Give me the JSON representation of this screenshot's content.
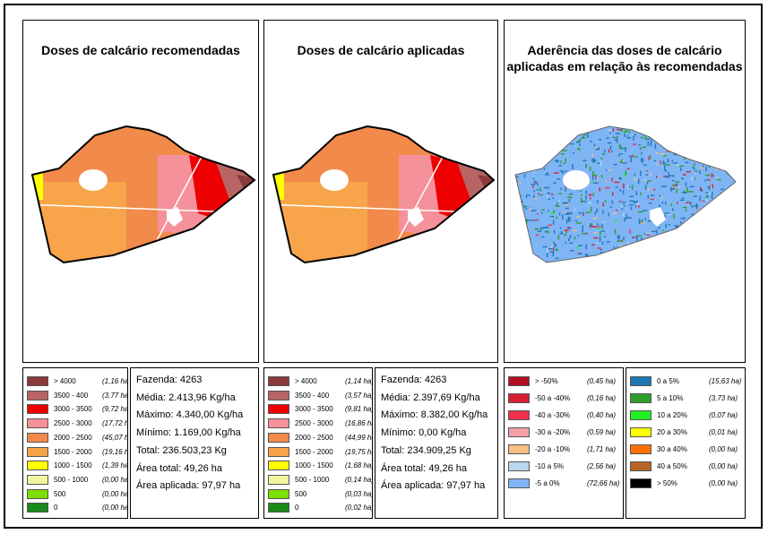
{
  "maps": [
    {
      "title": "Doses de calcário recomendadas"
    },
    {
      "title": "Doses de calcário aplicadas"
    },
    {
      "title": "Aderência das doses de calcário\naplicadas  em relação às recomendadas"
    }
  ],
  "legends": [
    {
      "items": [
        {
          "label": "> 4000",
          "area": "(1,16 ha)",
          "color": "#8B3A3A"
        },
        {
          "label": "3500 - 400",
          "area": "(3,77 ha)",
          "color": "#B86464"
        },
        {
          "label": "3000 - 3500",
          "area": "(9,72 ha)",
          "color": "#EE0000"
        },
        {
          "label": "2500 - 3000",
          "area": "(17,72 ha)",
          "color": "#F5919A"
        },
        {
          "label": "2000 - 2500",
          "area": "(45,07 ha)",
          "color": "#F28A4B"
        },
        {
          "label": "1500 - 2000",
          "area": "(19,16 ha)",
          "color": "#F7A44A"
        },
        {
          "label": "1000 - 1500",
          "area": "(1,39 ha)",
          "color": "#FFFF00"
        },
        {
          "label": "500 - 1000",
          "area": "(0,00 ha)",
          "color": "#F5F5A0"
        },
        {
          "label": "500",
          "area": "(0,00 ha)",
          "color": "#7FE000"
        },
        {
          "label": "0",
          "area": "(0,00 ha)",
          "color": "#1A8A1A"
        }
      ]
    },
    {
      "items": [
        {
          "label": "> 4000",
          "area": "(1,14 ha)",
          "color": "#8B3A3A"
        },
        {
          "label": "3500 - 400",
          "area": "(3,57 ha)",
          "color": "#B86464"
        },
        {
          "label": "3000 - 3500",
          "area": "(9,81 ha)",
          "color": "#EE0000"
        },
        {
          "label": "2500 - 3000",
          "area": "(16,86 ha)",
          "color": "#F5919A"
        },
        {
          "label": "2000 - 2500",
          "area": "(44,99 ha)",
          "color": "#F28A4B"
        },
        {
          "label": "1500 - 2000",
          "area": "(19,75 ha)",
          "color": "#F7A44A"
        },
        {
          "label": "1000 - 1500",
          "area": "(1,68 ha)",
          "color": "#FFFF00"
        },
        {
          "label": "500 - 1000",
          "area": "(0,14 ha)",
          "color": "#F5F5A0"
        },
        {
          "label": "500",
          "area": "(0,03 ha)",
          "color": "#7FE000"
        },
        {
          "label": "0",
          "area": "(0,02 ha)",
          "color": "#1A8A1A"
        }
      ]
    },
    {
      "items": [
        {
          "label": "> -50%",
          "area": "(0,45 ha)",
          "color": "#B01020"
        },
        {
          "label": "-50 a -40%",
          "area": "(0,16 ha)",
          "color": "#D62030"
        },
        {
          "label": "-40 a -30%",
          "area": "(0,40 ha)",
          "color": "#F03050"
        },
        {
          "label": "-30 a -20%",
          "area": "(0,59 ha)",
          "color": "#F5A0A8"
        },
        {
          "label": "-20 a -10%",
          "area": "(1,71 ha)",
          "color": "#F8C080"
        },
        {
          "label": "-10 a 5%",
          "area": "(2,56 ha)",
          "color": "#B8D8F0"
        },
        {
          "label": "-5 a 0%",
          "area": "(72,66 ha)",
          "color": "#7FB5F5"
        }
      ]
    },
    {
      "items": [
        {
          "label": "0 a 5%",
          "area": "(15,63 ha)",
          "color": "#1F78B4"
        },
        {
          "label": "5 a 10%",
          "area": "(3,73 ha)",
          "color": "#2E9E2E"
        },
        {
          "label": "10 a 20%",
          "area": "(0,07 ha)",
          "color": "#22EE22"
        },
        {
          "label": "20 a 30%",
          "area": "(0,01 ha)",
          "color": "#FFFF00"
        },
        {
          "label": "30 a 40%",
          "area": "(0,00 ha)",
          "color": "#FF7000"
        },
        {
          "label": "40 a 50%",
          "area": "(0,00 ha)",
          "color": "#B86428"
        },
        {
          "label": "> 50%",
          "area": "(0,00 ha)",
          "color": "#000000"
        }
      ]
    }
  ],
  "stats": [
    {
      "lines": [
        "Fazenda: 4263",
        "Média: 2.413,96 Kg/ha",
        "Máximo: 4.340,00 Kg/ha",
        "Mínimo: 1.169,00 Kg/ha",
        "Total: 236.503,23 Kg",
        "Área total: 49,26 ha",
        "Área aplicada: 97,97 ha"
      ]
    },
    {
      "lines": [
        "Fazenda: 4263",
        "Média: 2.397,69 Kg/ha",
        "Máximo: 8.382,00 Kg/ha",
        "Mínimo: 0,00 Kg/ha",
        "Total: 234.909,25 Kg",
        "Área total: 49,26 ha",
        "Área aplicada: 97,97 ha"
      ]
    }
  ],
  "colors": {
    "zone_dark_brown": "#8B3A3A",
    "zone_light_brown": "#B86464",
    "zone_red": "#EE0000",
    "zone_pink": "#F5919A",
    "zone_orange": "#F28A4B",
    "zone_light_orange": "#F7A44A",
    "zone_yellow": "#FFFF00",
    "adherence_base": "#7FB5F5",
    "adherence_dark_blue": "#1F78B4"
  }
}
